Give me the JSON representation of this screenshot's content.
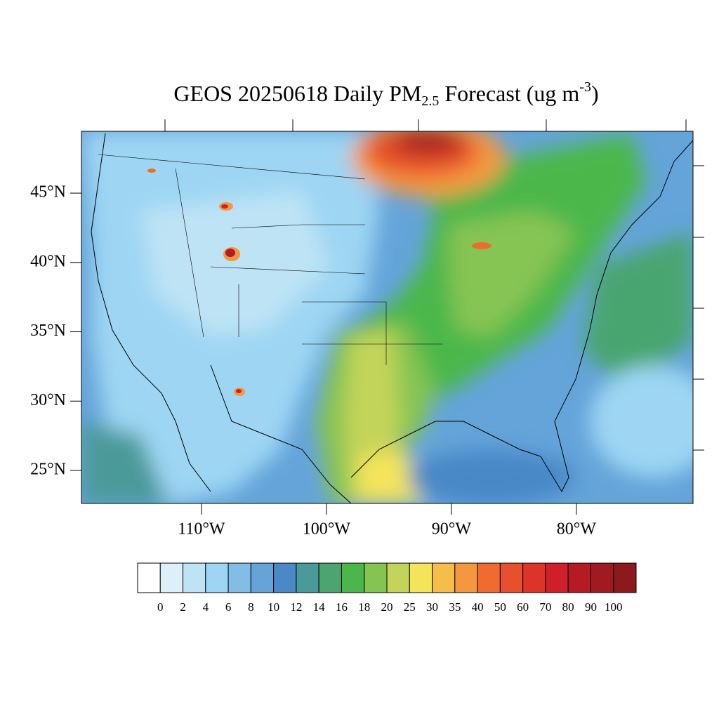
{
  "title": {
    "parts": [
      "GEOS 20250618 Daily PM",
      "2.5",
      " Forecast (ug m",
      "-3",
      ")"
    ]
  },
  "map": {
    "lat_range": [
      22.62,
      49.46
    ],
    "lon_range": [
      -119.6,
      -70.67
    ],
    "lat_ticks": [
      {
        "value": 45,
        "label": "45°N"
      },
      {
        "value": 40,
        "label": "40°N"
      },
      {
        "value": 35,
        "label": "35°N"
      },
      {
        "value": 30,
        "label": "30°N"
      },
      {
        "value": 25,
        "label": "25°N"
      }
    ],
    "lon_ticks": [
      {
        "value": -110,
        "label": "110°W"
      },
      {
        "value": -100,
        "label": "100°W"
      },
      {
        "value": -90,
        "label": "90°W"
      },
      {
        "value": -80,
        "label": "80°W"
      }
    ]
  },
  "colorbar": {
    "levels": [
      0,
      2,
      4,
      6,
      8,
      10,
      12,
      14,
      16,
      18,
      20,
      25,
      30,
      35,
      40,
      50,
      60,
      70,
      80,
      90,
      100
    ],
    "colors": [
      "#ffffff",
      "#ddf0fa",
      "#bde3f5",
      "#9dd5f3",
      "#82bde6",
      "#64a4d9",
      "#4a88c7",
      "#4b9a9a",
      "#4aa56f",
      "#4bb74b",
      "#86c452",
      "#c3d45a",
      "#f4e45a",
      "#f7bd4b",
      "#f5973f",
      "#ef6c30",
      "#e6502c",
      "#dc3429",
      "#cf1f2a",
      "#b41b25",
      "#a11a22",
      "#8c1a1d"
    ]
  }
}
